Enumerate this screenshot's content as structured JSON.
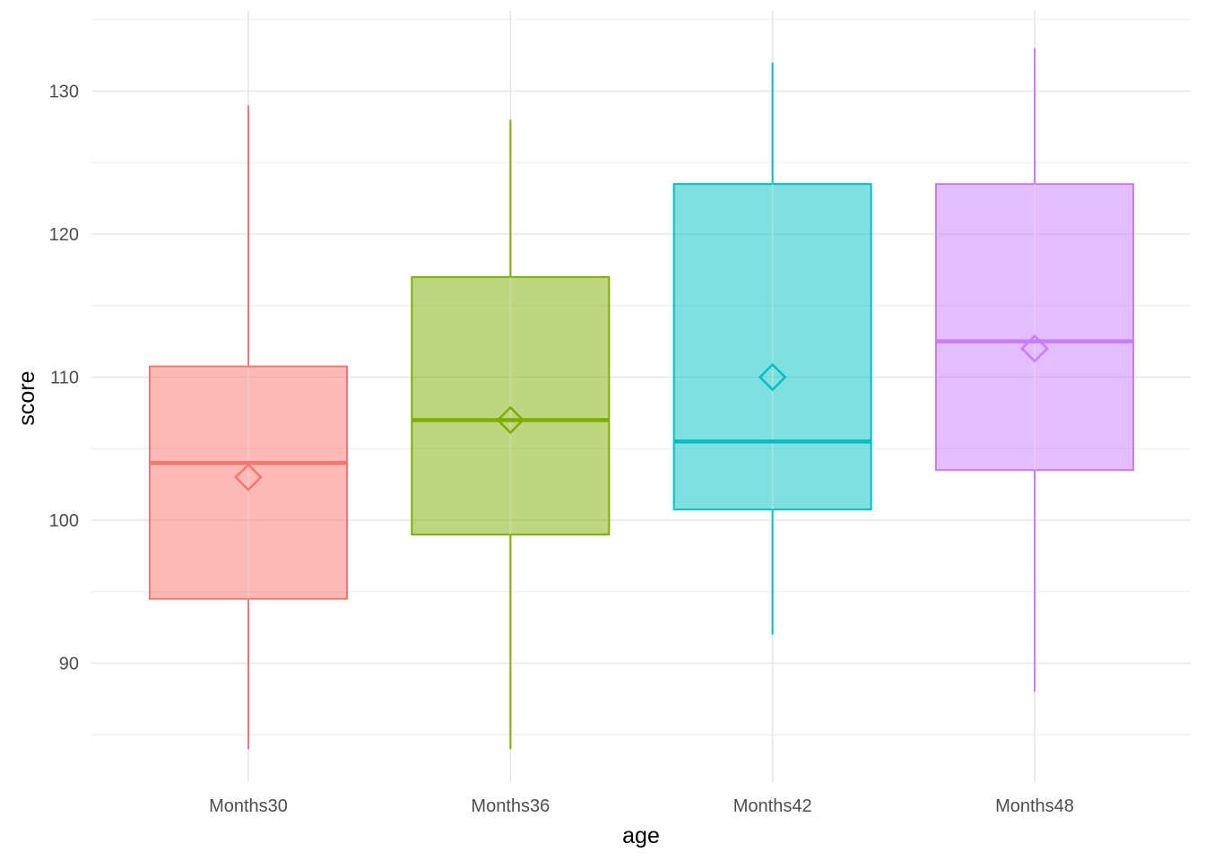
{
  "chart_data": {
    "type": "boxplot",
    "title": "",
    "xlabel": "age",
    "ylabel": "score",
    "categories": [
      "Months30",
      "Months36",
      "Months42",
      "Months48"
    ],
    "colors": [
      "#F8766D",
      "#7CAE00",
      "#00BFC4",
      "#C77CFF"
    ],
    "boxes": [
      {
        "category": "Months30",
        "whisker_low": 84,
        "q1": 94.5,
        "median": 104,
        "q3": 110.75,
        "whisker_high": 129,
        "mean": 103
      },
      {
        "category": "Months36",
        "whisker_low": 84,
        "q1": 99,
        "median": 107,
        "q3": 117,
        "whisker_high": 128,
        "mean": 107
      },
      {
        "category": "Months42",
        "whisker_low": 92,
        "q1": 100.75,
        "median": 105.5,
        "q3": 123.5,
        "whisker_high": 132,
        "mean": 110
      },
      {
        "category": "Months48",
        "whisker_low": 88,
        "q1": 103.5,
        "median": 112.5,
        "q3": 123.5,
        "whisker_high": 133,
        "mean": 112
      }
    ],
    "y_ticks": [
      90,
      100,
      110,
      120,
      130
    ],
    "ylim": [
      83.75,
      135
    ],
    "grid": true,
    "legend": "none"
  }
}
